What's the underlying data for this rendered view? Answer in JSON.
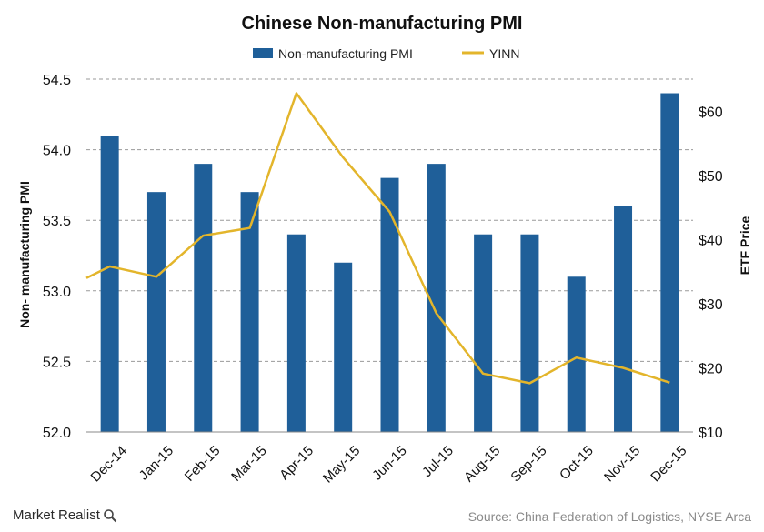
{
  "chart_data": {
    "type": "bar+line",
    "title": "Chinese Non-manufacturing PMI",
    "categories": [
      "Dec-14",
      "Jan-15",
      "Feb-15",
      "Mar-15",
      "Apr-15",
      "May-15",
      "Jun-15",
      "Jul-15",
      "Aug-15",
      "Sep-15",
      "Oct-15",
      "Nov-15",
      "Dec-15"
    ],
    "series": [
      {
        "name": "Non-manufacturing PMI",
        "type": "bar",
        "axis": "left",
        "color": "#1f5f99",
        "values": [
          54.1,
          53.7,
          53.9,
          53.7,
          53.4,
          53.2,
          53.8,
          53.9,
          53.4,
          53.4,
          53.1,
          53.6,
          54.4
        ]
      },
      {
        "name": "YINN",
        "type": "line",
        "axis": "right",
        "color": "#e3b52b",
        "values": [
          35.8,
          34.2,
          40.6,
          41.8,
          62.8,
          52.8,
          44.3,
          28.5,
          19.1,
          17.6,
          21.6,
          20.0,
          17.7
        ]
      }
    ],
    "ylabel_left": "Non- manufacturing PMI",
    "ylabel_right": "ETF Price",
    "ylim_left": [
      52.0,
      54.5
    ],
    "ylim_right": [
      10,
      65
    ],
    "yticks_left": [
      "52.0",
      "52.5",
      "53.0",
      "53.5",
      "54.0",
      "54.5"
    ],
    "ytick_values_left": [
      52.0,
      52.5,
      53.0,
      53.5,
      54.0,
      54.5
    ],
    "yticks_right": [
      "$10",
      "$20",
      "$30",
      "$40",
      "$50",
      "$60"
    ],
    "ytick_values_right": [
      10,
      20,
      30,
      40,
      50,
      60
    ],
    "line_start_value": 34.0,
    "grid": true,
    "legend_position": "top"
  },
  "branding": {
    "name": "Market Realist"
  },
  "source": "Source:  China Federation of Logistics, NYSE Arca"
}
